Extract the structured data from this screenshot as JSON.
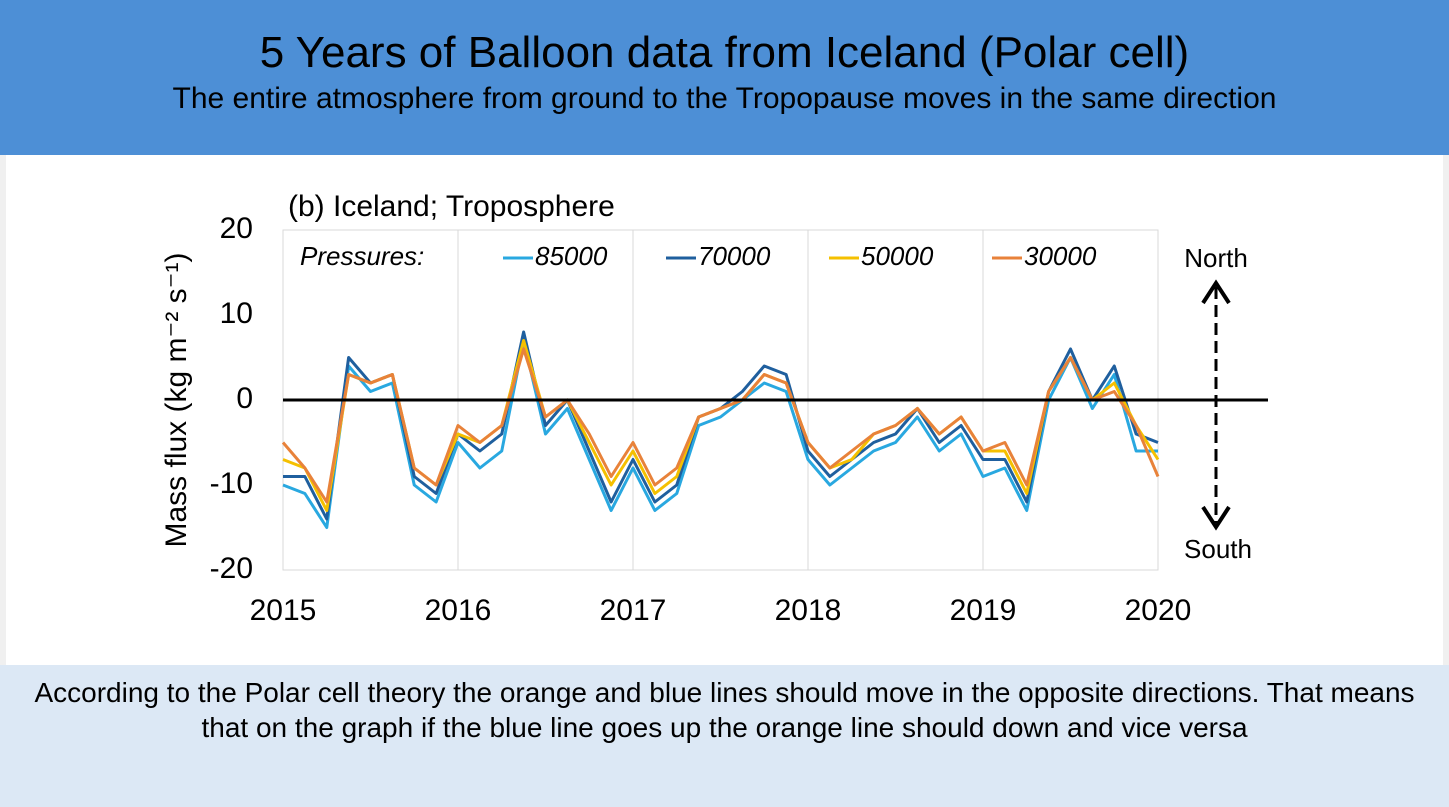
{
  "header": {
    "title": "5 Years of Balloon data from Iceland (Polar cell)",
    "subtitle": "The entire atmosphere from ground to the Tropopause moves in the same direction"
  },
  "chart_data": {
    "type": "line",
    "title": "(b) Iceland; Troposphere",
    "y_label": "Mass flux (kg m⁻² s⁻¹)",
    "legend_title": "Pressures:",
    "annotations": [
      "North",
      "South"
    ],
    "x": [
      2015,
      2015.125,
      2015.25,
      2015.375,
      2015.5,
      2015.625,
      2015.75,
      2015.875,
      2016,
      2016.125,
      2016.25,
      2016.375,
      2016.5,
      2016.625,
      2016.75,
      2016.875,
      2017,
      2017.125,
      2017.25,
      2017.375,
      2017.5,
      2017.625,
      2017.75,
      2017.875,
      2018,
      2018.125,
      2018.25,
      2018.375,
      2018.5,
      2018.625,
      2018.75,
      2018.875,
      2019,
      2019.125,
      2019.25,
      2019.375,
      2019.5,
      2019.625,
      2019.75,
      2019.875,
      2020
    ],
    "series": [
      {
        "name": "85000",
        "color": "#29a8e0",
        "values": [
          -10,
          -11,
          -15,
          4,
          1,
          2,
          -10,
          -12,
          -5,
          -8,
          -6,
          7,
          -4,
          -1,
          -7,
          -13,
          -8,
          -13,
          -11,
          -3,
          -2,
          0,
          2,
          1,
          -7,
          -10,
          -8,
          -6,
          -5,
          -2,
          -6,
          -4,
          -9,
          -8,
          -13,
          0,
          5,
          -1,
          3,
          -6,
          -6
        ]
      },
      {
        "name": "70000",
        "color": "#1f5f9e",
        "values": [
          -9,
          -9,
          -14,
          5,
          2,
          3,
          -9,
          -11,
          -4,
          -6,
          -4,
          8,
          -3,
          0,
          -6,
          -12,
          -7,
          -12,
          -10,
          -2,
          -1,
          1,
          4,
          3,
          -6,
          -9,
          -7,
          -5,
          -4,
          -1,
          -5,
          -3,
          -7,
          -7,
          -12,
          1,
          6,
          0,
          4,
          -4,
          -5
        ]
      },
      {
        "name": "50000",
        "color": "#f5c000",
        "values": [
          -7,
          -8,
          -13,
          3,
          2,
          3,
          -8,
          -10,
          -4,
          -5,
          -3,
          7,
          -2,
          0,
          -5,
          -10,
          -6,
          -11,
          -9,
          -2,
          -1,
          0,
          3,
          2,
          -5,
          -8,
          -7,
          -4,
          -3,
          -1,
          -4,
          -2,
          -6,
          -6,
          -11,
          1,
          5,
          0,
          2,
          -3,
          -7
        ]
      },
      {
        "name": "30000",
        "color": "#e8823a",
        "values": [
          -5,
          -8,
          -12,
          3,
          2,
          3,
          -8,
          -10,
          -3,
          -5,
          -3,
          6,
          -2,
          0,
          -4,
          -9,
          -5,
          -10,
          -8,
          -2,
          -1,
          0,
          3,
          2,
          -5,
          -8,
          -6,
          -4,
          -3,
          -1,
          -4,
          -2,
          -6,
          -5,
          -10,
          1,
          5,
          0,
          1,
          -3,
          -9
        ]
      }
    ],
    "xlim": [
      2015,
      2020
    ],
    "xticks": [
      2015,
      2016,
      2017,
      2018,
      2019,
      2020
    ],
    "ylim": [
      -20,
      20
    ],
    "yticks": [
      -20,
      -10,
      0,
      10,
      20
    ],
    "grid": true
  },
  "footer": {
    "text": "According to the Polar cell theory the orange and blue lines should move in the opposite directions. That means that on the graph if the blue line goes up the orange line should down and vice versa"
  }
}
